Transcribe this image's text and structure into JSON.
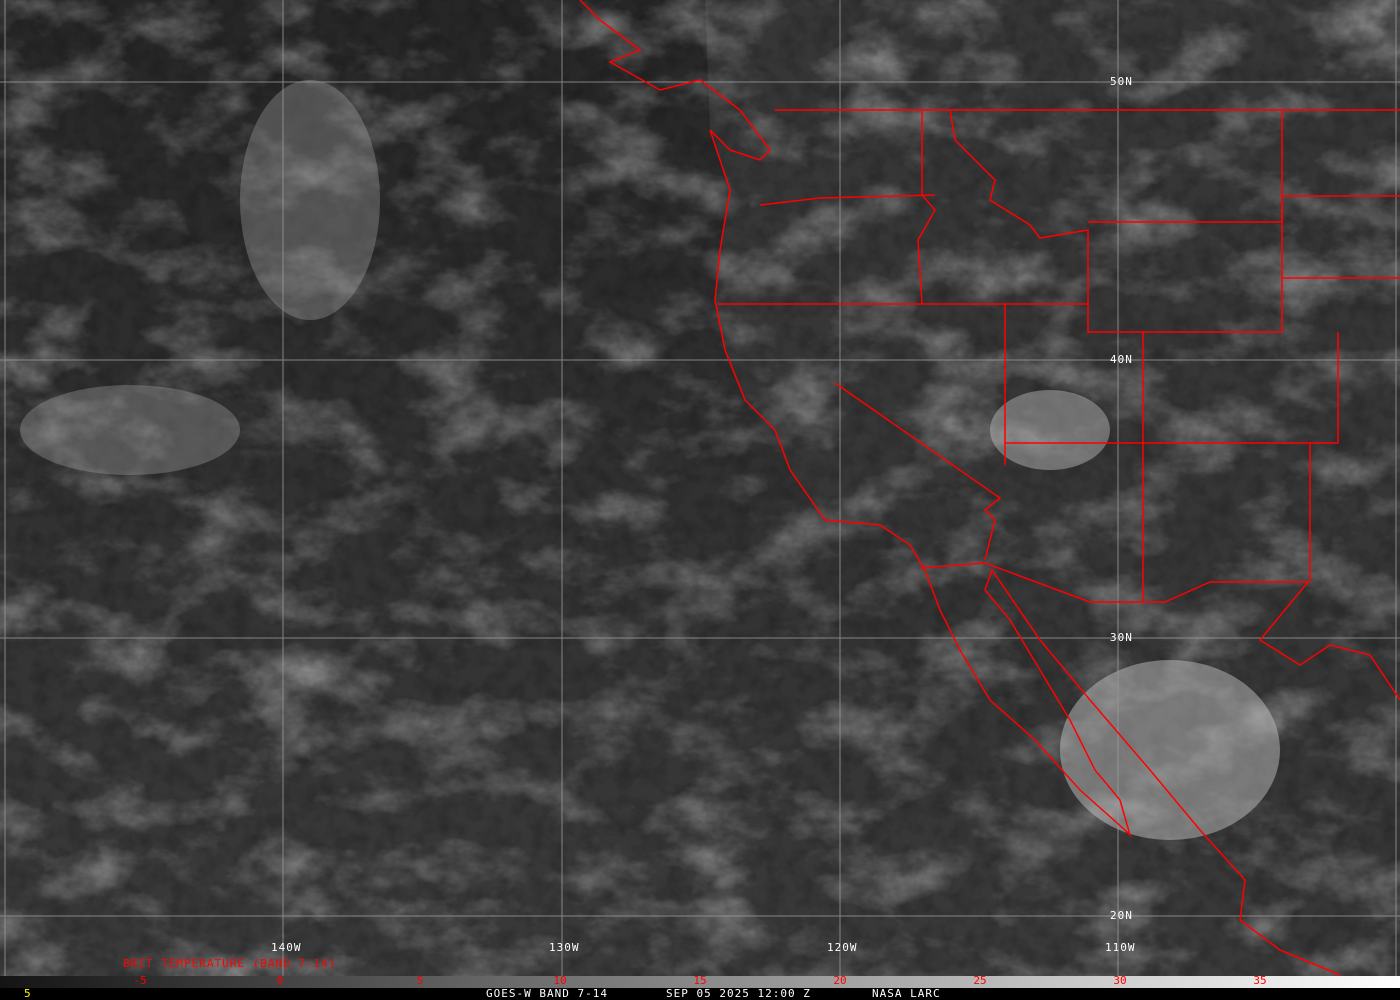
{
  "grid_labels": {
    "lon": [
      "140W",
      "130W",
      "120W",
      "110W"
    ],
    "lat": [
      "50N",
      "40N",
      "30N",
      "20N"
    ]
  },
  "colorbar": {
    "title": "BRIT TEMPERATURE (BAND 7-14)",
    "ticks": [
      "-5",
      "0",
      "5",
      "10",
      "15",
      "20",
      "25",
      "30",
      "35"
    ],
    "range": [
      -10,
      40
    ],
    "gradient": [
      "#141414",
      "#ffffff"
    ]
  },
  "footer": {
    "frame": "5",
    "product": "GOES-W BAND 7-14",
    "datetime": "SEP 05 2025 12:00 Z",
    "source": "NASA LARC"
  },
  "colors": {
    "borders": "#ff0000",
    "grid": "#9a9a9a",
    "labels": "#ffffff",
    "frame": "#ffff00"
  }
}
